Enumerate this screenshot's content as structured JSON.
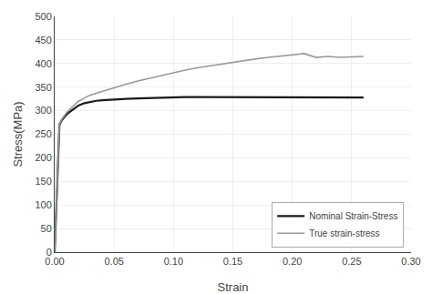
{
  "chart_data": {
    "type": "line",
    "xlabel": "Strain",
    "ylabel": "Stress(MPa)",
    "x": [
      0.0,
      0.002,
      0.004,
      0.006,
      0.008,
      0.01,
      0.012,
      0.015,
      0.018,
      0.02,
      0.025,
      0.03,
      0.035,
      0.04,
      0.05,
      0.06,
      0.07,
      0.08,
      0.09,
      0.1,
      0.11,
      0.12,
      0.13,
      0.14,
      0.15,
      0.16,
      0.17,
      0.18,
      0.19,
      0.2,
      0.21,
      0.22,
      0.23,
      0.24,
      0.25,
      0.26
    ],
    "series": [
      {
        "name": "Nominal Strain-Stress",
        "color": "#1a1a1a",
        "values": [
          0,
          138,
          270,
          280,
          287,
          292,
          296,
          302,
          308,
          311,
          316,
          319,
          321,
          322,
          324,
          325,
          326,
          327,
          328,
          328,
          329,
          329,
          329,
          329,
          329,
          329,
          329,
          329,
          329,
          329,
          329,
          329,
          329,
          329,
          329,
          328
        ]
      },
      {
        "name": "True strain-stress",
        "color": "#999999",
        "values": [
          0,
          138,
          271,
          282,
          290,
          296,
          301,
          308,
          315,
          320,
          327,
          333,
          337,
          341,
          348,
          356,
          363,
          369,
          375,
          381,
          386,
          391,
          395,
          399,
          403,
          407,
          410,
          413,
          416,
          419,
          421,
          413,
          415,
          413,
          414,
          415
        ]
      }
    ],
    "xlim": [
      0.0,
      0.3
    ],
    "ylim": [
      0,
      500
    ],
    "xticks": [
      {
        "value": 0.0,
        "label": "0.00"
      },
      0.05,
      {
        "value": 0.1,
        "label": "0.10"
      },
      0.15,
      {
        "value": 0.2,
        "label": "0.20"
      },
      0.25,
      {
        "value": 0.3,
        "label": "0.30"
      }
    ],
    "yticks": [
      0,
      50,
      100,
      150,
      200,
      250,
      300,
      350,
      400,
      450,
      500
    ],
    "grid": true,
    "legend": "lower right"
  }
}
